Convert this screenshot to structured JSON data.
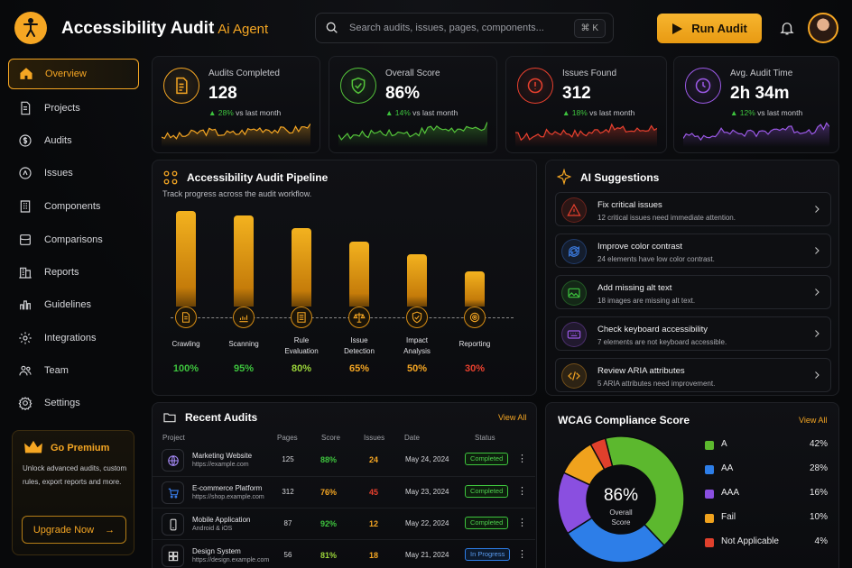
{
  "app": {
    "title": "Accessibility Audit",
    "suffix": "Ai Agent"
  },
  "search": {
    "placeholder": "Search audits, issues, pages, components...",
    "shortcut": "⌘ K"
  },
  "header": {
    "run_label": "Run Audit"
  },
  "sidebar": {
    "items": [
      {
        "label": "Overview",
        "icon": "home-icon",
        "active": true
      },
      {
        "label": "Projects",
        "icon": "document-icon"
      },
      {
        "label": "Audits",
        "icon": "dollar-circle-icon"
      },
      {
        "label": "Issues",
        "icon": "triangle-circle-icon"
      },
      {
        "label": "Components",
        "icon": "components-icon"
      },
      {
        "label": "Comparisons",
        "icon": "compare-icon"
      },
      {
        "label": "Reports",
        "icon": "building-icon"
      },
      {
        "label": "Guidelines",
        "icon": "chart-icon"
      },
      {
        "label": "Integrations",
        "icon": "gear-icon"
      },
      {
        "label": "Team",
        "icon": "team-icon"
      },
      {
        "label": "Settings",
        "icon": "settings-icon"
      }
    ]
  },
  "premium": {
    "title": "Go Premium",
    "desc": "Unlock advanced audits, custom rules, export reports and more.",
    "button": "Upgrade Now"
  },
  "stats": [
    {
      "label": "Audits Completed",
      "value": "128",
      "change": "28%",
      "suffix": "vs last month",
      "color": "#f5a623"
    },
    {
      "label": "Overall Score",
      "value": "86%",
      "change": "14%",
      "suffix": "vs last month",
      "color": "#54c43a"
    },
    {
      "label": "Issues Found",
      "value": "312",
      "change": "18%",
      "suffix": "vs last month",
      "color": "#e8402e"
    },
    {
      "label": "Avg. Audit Time",
      "value": "2h 34m",
      "change": "12%",
      "suffix": "vs last month",
      "color": "#9b59e6"
    }
  ],
  "pipeline": {
    "title": "Accessibility Audit Pipeline",
    "subtitle": "Track progress across the audit workflow.",
    "stages": [
      {
        "name": "Crawling",
        "value": 100,
        "label": "100%",
        "color": "#3ec43e"
      },
      {
        "name": "Scanning",
        "value": 95,
        "label": "95%",
        "color": "#3ec43e"
      },
      {
        "name": "Rule\nEvaluation",
        "value": 80,
        "label": "80%",
        "color": "#9bd43a"
      },
      {
        "name": "Issue\nDetection",
        "value": 65,
        "label": "65%",
        "color": "#f5a623"
      },
      {
        "name": "Impact\nAnalysis",
        "value": 50,
        "label": "50%",
        "color": "#f5a623"
      },
      {
        "name": "Reporting",
        "value": 30,
        "label": "30%",
        "color": "#e8402e"
      }
    ]
  },
  "suggestions": {
    "title": "AI Suggestions",
    "items": [
      {
        "title": "Fix critical issues",
        "desc": "12 critical issues need immediate attention.",
        "icon": "warning-icon",
        "color": "#e8402e"
      },
      {
        "title": "Improve color contrast",
        "desc": "24 elements have low color contrast.",
        "icon": "refresh-icon",
        "color": "#3b7be0"
      },
      {
        "title": "Add missing alt text",
        "desc": "18 images are missing alt text.",
        "icon": "image-icon",
        "color": "#3ec43e"
      },
      {
        "title": "Check keyboard accessibility",
        "desc": "7 elements are not keyboard accessible.",
        "icon": "keyboard-icon",
        "color": "#9b59e6"
      },
      {
        "title": "Review ARIA attributes",
        "desc": "5 ARIA attributes need improvement.",
        "icon": "code-icon",
        "color": "#f5a623"
      }
    ]
  },
  "recent": {
    "title": "Recent Audits",
    "view_all": "View All",
    "columns": [
      "Project",
      "Pages",
      "Score",
      "Issues",
      "Date",
      "Status"
    ],
    "rows": [
      {
        "name": "Marketing Website",
        "url": "https://example.com",
        "pages": "125",
        "score": "88%",
        "issues": "24",
        "date": "May 24, 2024",
        "status": "Completed",
        "icon": "globe-icon"
      },
      {
        "name": "E-commerce Platform",
        "url": "https://shop.example.com",
        "pages": "312",
        "score": "76%",
        "issues": "45",
        "date": "May 23, 2024",
        "status": "Completed",
        "icon": "cart-icon"
      },
      {
        "name": "Mobile Application",
        "url": "Android & iOS",
        "pages": "87",
        "score": "92%",
        "issues": "12",
        "date": "May 22, 2024",
        "status": "Completed",
        "icon": "phone-icon"
      },
      {
        "name": "Design System",
        "url": "https://design.example.com",
        "pages": "56",
        "score": "81%",
        "issues": "18",
        "date": "May 21, 2024",
        "status": "In Progress",
        "icon": "grid-icon"
      }
    ]
  },
  "wcag": {
    "title": "WCAG Compliance Score",
    "view_all": "View All",
    "center_value": "86%",
    "center_label": "Overall Score",
    "legend": [
      {
        "name": "A",
        "value": "42%",
        "color": "#5cb82e"
      },
      {
        "name": "AA",
        "value": "28%",
        "color": "#2d7ee8"
      },
      {
        "name": "AAA",
        "value": "16%",
        "color": "#8a4fe0"
      },
      {
        "name": "Fail",
        "value": "10%",
        "color": "#f0a21d"
      },
      {
        "name": "Not Applicable",
        "value": "4%",
        "color": "#e0402c"
      }
    ]
  },
  "chart_data": {
    "type": "pie",
    "categories": [
      "A",
      "AA",
      "AAA",
      "Fail",
      "Not Applicable"
    ],
    "values": [
      42,
      28,
      16,
      10,
      4
    ]
  }
}
